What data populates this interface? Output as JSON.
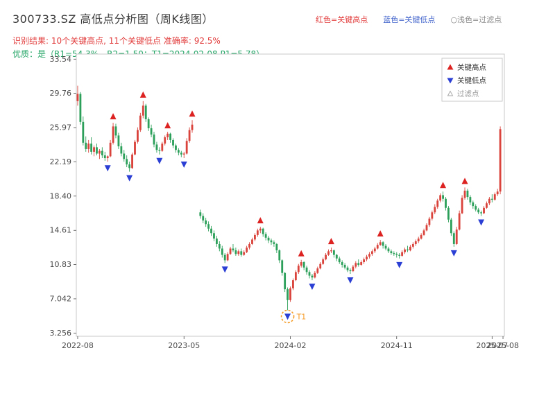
{
  "header": {
    "title": "300733.SZ 高低点分析图（周K线图）",
    "legend_top": {
      "high_label": "红色=关键高点",
      "low_label": "蓝色=关键低点",
      "filtered_label": "○浅色=过滤点"
    },
    "result_line": "识别结果: 10个关键高点, 11个关键低点  准确率: 92.5%",
    "quality_line": "优质：是（R1=54.3%，R2=1.50；T1=2024-02-08 P1=5.78）"
  },
  "colors": {
    "candle_up": "#d9433b",
    "candle_down": "#2ca05a",
    "high_marker": "#dd2222",
    "low_marker": "#2b3fd4",
    "filtered_marker": "#aaaaaa",
    "t1_annotation": "#f59a23",
    "axis_text": "#4a4a4a",
    "spine": "#c9c9c9",
    "legend_text": "#333333",
    "legend_muted": "#999999"
  },
  "chart_data": {
    "type": "candlestick-ohlc",
    "title": "300733.SZ 周K线 高低点分析",
    "xlabel": "",
    "ylabel": "",
    "grid": false,
    "legend_position": "upper-right",
    "y_range": [
      2.9,
      34.1
    ],
    "slots": 157,
    "y_ticks": [
      {
        "v": 33.54,
        "label": "33.54"
      },
      {
        "v": 29.76,
        "label": "29.76"
      },
      {
        "v": 25.97,
        "label": "25.97"
      },
      {
        "v": 22.19,
        "label": "22.19"
      },
      {
        "v": 18.4,
        "label": "18.40"
      },
      {
        "v": 14.61,
        "label": "14.61"
      },
      {
        "v": 10.83,
        "label": "10.83"
      },
      {
        "v": 7.042,
        "label": "7.042"
      },
      {
        "v": 3.256,
        "label": "3.256"
      }
    ],
    "x_ticks": [
      {
        "slot": 0,
        "label": "2022-08"
      },
      {
        "slot": 39,
        "label": "2023-05"
      },
      {
        "slot": 78,
        "label": "2024-02"
      },
      {
        "slot": 117,
        "label": "2024-11"
      },
      {
        "slot": 152,
        "label": "2025-07"
      },
      {
        "slot": 156,
        "label": "2025-08"
      }
    ],
    "candles": [
      [
        28.9,
        30.6,
        28.4,
        29.7
      ],
      [
        29.7,
        29.9,
        26.3,
        26.6
      ],
      [
        26.6,
        27.2,
        24.0,
        24.3
      ],
      [
        24.3,
        25.0,
        23.3,
        23.6
      ],
      [
        23.6,
        24.6,
        23.2,
        24.2
      ],
      [
        24.2,
        24.9,
        23.0,
        23.3
      ],
      [
        23.3,
        24.0,
        22.8,
        23.8
      ],
      [
        23.8,
        24.2,
        22.9,
        23.1
      ],
      [
        23.1,
        23.6,
        22.5,
        23.4
      ],
      [
        23.4,
        23.8,
        22.6,
        22.9
      ],
      [
        22.9,
        23.3,
        22.3,
        22.6
      ],
      [
        22.6,
        22.9,
        22.2,
        22.8
      ],
      [
        22.8,
        24.6,
        22.7,
        24.3
      ],
      [
        24.3,
        26.5,
        24.1,
        26.1
      ],
      [
        26.1,
        26.4,
        24.8,
        25.1
      ],
      [
        25.1,
        25.4,
        23.6,
        23.9
      ],
      [
        23.9,
        24.3,
        22.8,
        23.1
      ],
      [
        23.1,
        23.5,
        22.2,
        22.5
      ],
      [
        22.5,
        22.9,
        21.6,
        21.9
      ],
      [
        21.9,
        22.2,
        21.1,
        21.5
      ],
      [
        21.5,
        23.2,
        21.4,
        23.0
      ],
      [
        23.0,
        24.6,
        22.9,
        24.4
      ],
      [
        24.4,
        26.0,
        24.2,
        25.7
      ],
      [
        25.7,
        27.6,
        25.5,
        27.3
      ],
      [
        27.3,
        28.9,
        27.0,
        28.4
      ],
      [
        28.4,
        28.6,
        26.6,
        26.9
      ],
      [
        26.9,
        27.1,
        25.6,
        25.9
      ],
      [
        25.9,
        26.3,
        24.9,
        25.2
      ],
      [
        25.2,
        25.5,
        23.8,
        24.1
      ],
      [
        24.1,
        24.4,
        23.2,
        23.5
      ],
      [
        23.5,
        23.8,
        23.0,
        23.4
      ],
      [
        23.4,
        24.4,
        23.3,
        24.2
      ],
      [
        24.2,
        25.1,
        24.0,
        24.9
      ],
      [
        24.9,
        25.5,
        24.6,
        25.3
      ],
      [
        25.3,
        25.4,
        24.3,
        24.6
      ],
      [
        24.6,
        24.8,
        23.7,
        24.0
      ],
      [
        24.0,
        24.2,
        23.2,
        23.5
      ],
      [
        23.5,
        23.7,
        22.9,
        23.2
      ],
      [
        23.2,
        23.4,
        22.7,
        23.0
      ],
      [
        23.0,
        23.3,
        22.6,
        23.1
      ],
      [
        23.1,
        24.8,
        23.0,
        24.5
      ],
      [
        24.5,
        26.0,
        24.3,
        25.7
      ],
      [
        25.7,
        26.8,
        25.4,
        26.3
      ],
      null,
      null,
      [
        16.6,
        16.9,
        15.9,
        16.2
      ],
      [
        16.2,
        16.5,
        15.4,
        15.7
      ],
      [
        15.7,
        16.0,
        15.0,
        15.3
      ],
      [
        15.3,
        15.6,
        14.5,
        14.8
      ],
      [
        14.8,
        15.1,
        14.0,
        14.3
      ],
      [
        14.3,
        14.6,
        13.4,
        13.7
      ],
      [
        13.7,
        14.0,
        12.8,
        13.1
      ],
      [
        13.1,
        13.4,
        12.3,
        12.6
      ],
      [
        12.6,
        12.9,
        11.6,
        11.9
      ],
      [
        11.9,
        12.1,
        11.0,
        11.3
      ],
      [
        11.3,
        12.2,
        11.2,
        12.0
      ],
      [
        12.0,
        12.8,
        11.9,
        12.6
      ],
      [
        12.6,
        13.1,
        12.2,
        12.4
      ],
      [
        12.4,
        12.7,
        11.8,
        12.0
      ],
      [
        12.0,
        12.5,
        11.8,
        12.3
      ],
      [
        12.3,
        12.6,
        11.7,
        11.9
      ],
      [
        11.9,
        12.4,
        11.8,
        12.2
      ],
      [
        12.2,
        12.9,
        12.1,
        12.7
      ],
      [
        12.7,
        13.3,
        12.5,
        13.1
      ],
      [
        13.1,
        13.8,
        13.0,
        13.6
      ],
      [
        13.6,
        14.3,
        13.4,
        14.1
      ],
      [
        14.1,
        14.8,
        13.9,
        14.6
      ],
      [
        14.6,
        15.0,
        14.3,
        14.8
      ],
      [
        14.8,
        14.9,
        13.9,
        14.2
      ],
      [
        14.2,
        14.4,
        13.5,
        13.8
      ],
      [
        13.8,
        14.0,
        13.2,
        13.5
      ],
      [
        13.5,
        13.7,
        13.0,
        13.3
      ],
      [
        13.3,
        13.5,
        12.8,
        13.1
      ],
      [
        13.1,
        13.2,
        12.1,
        12.4
      ],
      [
        12.4,
        12.5,
        11.0,
        11.3
      ],
      [
        11.3,
        11.4,
        9.6,
        9.9
      ],
      [
        9.9,
        10.0,
        7.8,
        8.1
      ],
      [
        8.1,
        8.3,
        5.78,
        6.9
      ],
      [
        6.9,
        8.4,
        6.7,
        8.2
      ],
      [
        8.2,
        9.3,
        8.0,
        9.1
      ],
      [
        9.1,
        10.2,
        9.0,
        10.0
      ],
      [
        10.0,
        10.9,
        9.8,
        10.7
      ],
      [
        10.7,
        11.35,
        10.5,
        11.1
      ],
      [
        11.1,
        11.2,
        10.2,
        10.5
      ],
      [
        10.5,
        10.7,
        9.7,
        10.0
      ],
      [
        10.0,
        10.2,
        9.3,
        9.6
      ],
      [
        9.6,
        9.8,
        9.1,
        9.4
      ],
      [
        9.4,
        10.1,
        9.3,
        9.9
      ],
      [
        9.9,
        10.6,
        9.8,
        10.4
      ],
      [
        10.4,
        11.1,
        10.3,
        10.9
      ],
      [
        10.9,
        11.6,
        10.8,
        11.4
      ],
      [
        11.4,
        12.1,
        11.3,
        11.9
      ],
      [
        11.9,
        12.5,
        11.8,
        12.3
      ],
      [
        12.3,
        12.7,
        12.1,
        12.4
      ],
      [
        12.4,
        12.5,
        11.6,
        11.9
      ],
      [
        11.9,
        12.0,
        11.2,
        11.5
      ],
      [
        11.5,
        11.7,
        10.9,
        11.1
      ],
      [
        11.1,
        11.3,
        10.5,
        10.8
      ],
      [
        10.8,
        11.0,
        10.3,
        10.5
      ],
      [
        10.5,
        10.7,
        10.0,
        10.2
      ],
      [
        10.2,
        10.4,
        9.8,
        10.1
      ],
      [
        10.1,
        10.8,
        10.0,
        10.6
      ],
      [
        10.6,
        11.2,
        10.4,
        11.0
      ],
      [
        11.0,
        11.4,
        10.6,
        10.8
      ],
      [
        10.8,
        11.3,
        10.7,
        11.1
      ],
      [
        11.1,
        11.6,
        10.9,
        11.4
      ],
      [
        11.4,
        11.9,
        11.2,
        11.7
      ],
      [
        11.7,
        12.2,
        11.5,
        12.0
      ],
      [
        12.0,
        12.5,
        11.8,
        12.3
      ],
      [
        12.3,
        12.8,
        12.1,
        12.6
      ],
      [
        12.6,
        13.2,
        12.5,
        13.0
      ],
      [
        13.0,
        13.55,
        12.9,
        13.3
      ],
      [
        13.3,
        13.4,
        12.6,
        12.9
      ],
      [
        12.9,
        13.1,
        12.4,
        12.6
      ],
      [
        12.6,
        12.8,
        12.1,
        12.3
      ],
      [
        12.3,
        12.5,
        11.9,
        12.1
      ],
      [
        12.1,
        12.3,
        11.8,
        12.0
      ],
      [
        12.0,
        12.2,
        11.6,
        11.9
      ],
      [
        11.9,
        12.1,
        11.5,
        11.8
      ],
      [
        11.8,
        12.4,
        11.7,
        12.2
      ],
      [
        12.2,
        12.7,
        12.0,
        12.5
      ],
      [
        12.5,
        12.9,
        12.2,
        12.4
      ],
      [
        12.4,
        13.0,
        12.3,
        12.8
      ],
      [
        12.8,
        13.3,
        12.6,
        13.1
      ],
      [
        13.1,
        13.6,
        12.9,
        13.4
      ],
      [
        13.4,
        13.9,
        13.2,
        13.7
      ],
      [
        13.7,
        14.3,
        13.6,
        14.1
      ],
      [
        14.1,
        14.8,
        14.0,
        14.6
      ],
      [
        14.6,
        15.4,
        14.5,
        15.2
      ],
      [
        15.2,
        16.1,
        15.0,
        15.9
      ],
      [
        15.9,
        16.8,
        15.7,
        16.6
      ],
      [
        16.6,
        17.5,
        16.4,
        17.2
      ],
      [
        17.2,
        18.1,
        17.0,
        17.9
      ],
      [
        17.9,
        18.7,
        17.7,
        18.5
      ],
      [
        18.5,
        18.9,
        17.8,
        18.1
      ],
      [
        18.1,
        18.3,
        16.8,
        17.1
      ],
      [
        17.1,
        17.3,
        15.5,
        15.8
      ],
      [
        15.8,
        16.0,
        14.0,
        14.3
      ],
      [
        14.3,
        14.5,
        12.8,
        13.1
      ],
      [
        13.1,
        15.0,
        13.0,
        14.7
      ],
      [
        14.7,
        16.8,
        14.6,
        16.5
      ],
      [
        16.5,
        18.5,
        16.4,
        18.2
      ],
      [
        18.2,
        19.35,
        18.0,
        19.0
      ],
      [
        19.0,
        19.2,
        18.0,
        18.3
      ],
      [
        18.3,
        18.5,
        17.4,
        17.7
      ],
      [
        17.7,
        17.9,
        17.0,
        17.3
      ],
      [
        17.3,
        17.5,
        16.7,
        16.9
      ],
      [
        16.9,
        17.1,
        16.4,
        16.6
      ],
      [
        16.6,
        16.8,
        16.2,
        16.5
      ],
      [
        16.5,
        17.3,
        16.4,
        17.1
      ],
      [
        17.1,
        17.8,
        17.0,
        17.6
      ],
      [
        17.6,
        18.3,
        17.4,
        18.1
      ],
      [
        18.1,
        18.6,
        17.7,
        18.0
      ],
      [
        18.0,
        18.8,
        17.9,
        18.6
      ],
      [
        18.6,
        19.2,
        18.4,
        18.9
      ],
      [
        18.9,
        26.1,
        18.6,
        25.8
      ]
    ],
    "key_highs": [
      {
        "index": 13,
        "price": 26.5
      },
      {
        "index": 24,
        "price": 28.9
      },
      {
        "index": 33,
        "price": 25.5
      },
      {
        "index": 42,
        "price": 26.8
      },
      {
        "index": 67,
        "price": 15.0
      },
      {
        "index": 82,
        "price": 11.35
      },
      {
        "index": 93,
        "price": 12.7
      },
      {
        "index": 111,
        "price": 13.55
      },
      {
        "index": 134,
        "price": 18.9
      },
      {
        "index": 142,
        "price": 19.35
      }
    ],
    "key_lows": [
      {
        "index": 11,
        "price": 22.2
      },
      {
        "index": 19,
        "price": 21.1
      },
      {
        "index": 30,
        "price": 23.0
      },
      {
        "index": 39,
        "price": 22.6
      },
      {
        "index": 54,
        "price": 11.0
      },
      {
        "index": 77,
        "price": 5.78
      },
      {
        "index": 86,
        "price": 9.1
      },
      {
        "index": 100,
        "price": 9.8
      },
      {
        "index": 118,
        "price": 11.5
      },
      {
        "index": 138,
        "price": 12.8
      },
      {
        "index": 148,
        "price": 16.2
      }
    ],
    "filtered_points": [
      {
        "index": 77,
        "price": 5.78,
        "label": "T1",
        "date": "2024-02-08"
      }
    ],
    "legend": {
      "high": "关键高点",
      "low": "关键低点",
      "filtered": "过滤点"
    }
  }
}
